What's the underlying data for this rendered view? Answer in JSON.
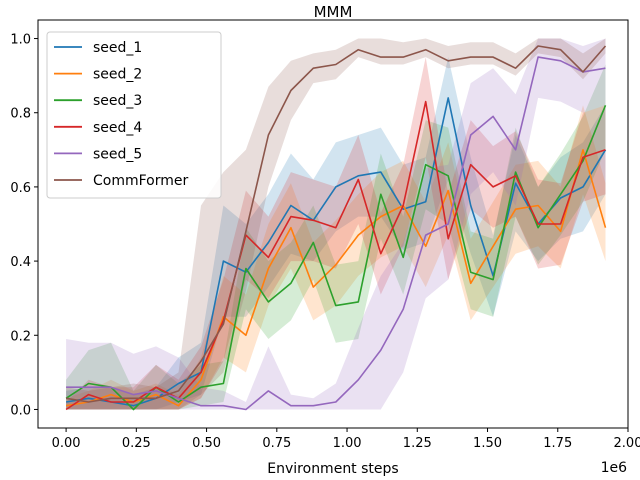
{
  "chart_data": {
    "type": "line",
    "title": "MMM",
    "xlabel": "Environment steps",
    "ylabel": "",
    "x_offset_label": "1e6",
    "xlim": [
      -0.1,
      2.0
    ],
    "ylim": [
      -0.05,
      1.05
    ],
    "x_ticks": [
      "0.00",
      "0.25",
      "0.50",
      "0.75",
      "1.00",
      "1.25",
      "1.50",
      "1.75",
      "2.00"
    ],
    "y_ticks": [
      "0.0",
      "0.2",
      "0.4",
      "0.6",
      "0.8",
      "1.0"
    ],
    "legend_position": "upper-left",
    "x": [
      0.0,
      0.08,
      0.16,
      0.24,
      0.32,
      0.4,
      0.48,
      0.56,
      0.64,
      0.72,
      0.8,
      0.88,
      0.96,
      1.04,
      1.12,
      1.2,
      1.28,
      1.36,
      1.44,
      1.52,
      1.6,
      1.68,
      1.76,
      1.84,
      1.92
    ],
    "series": [
      {
        "name": "seed_1",
        "color": "#1f77b4",
        "values": [
          0.02,
          0.03,
          0.02,
          0.01,
          0.03,
          0.07,
          0.1,
          0.4,
          0.37,
          0.45,
          0.55,
          0.51,
          0.6,
          0.63,
          0.64,
          0.54,
          0.56,
          0.84,
          0.55,
          0.36,
          0.61,
          0.5,
          0.57,
          0.6,
          0.7
        ],
        "lower": [
          0.0,
          0.0,
          0.0,
          0.0,
          0.0,
          0.02,
          0.04,
          0.25,
          0.25,
          0.33,
          0.42,
          0.4,
          0.48,
          0.52,
          0.52,
          0.43,
          0.45,
          0.62,
          0.42,
          0.25,
          0.48,
          0.4,
          0.46,
          0.48,
          0.58
        ],
        "upper": [
          0.05,
          0.06,
          0.06,
          0.04,
          0.06,
          0.14,
          0.18,
          0.55,
          0.5,
          0.58,
          0.69,
          0.62,
          0.72,
          0.74,
          0.76,
          0.66,
          0.68,
          0.95,
          0.68,
          0.47,
          0.74,
          0.6,
          0.68,
          0.72,
          0.82
        ]
      },
      {
        "name": "seed_2",
        "color": "#ff7f0e",
        "values": [
          0.01,
          0.02,
          0.04,
          0.02,
          0.04,
          0.01,
          0.08,
          0.25,
          0.2,
          0.38,
          0.49,
          0.33,
          0.39,
          0.47,
          0.52,
          0.55,
          0.44,
          0.59,
          0.34,
          0.44,
          0.54,
          0.55,
          0.48,
          0.7,
          0.49
        ],
        "lower": [
          0.0,
          0.0,
          0.0,
          0.0,
          0.0,
          0.0,
          0.03,
          0.14,
          0.1,
          0.28,
          0.38,
          0.24,
          0.28,
          0.36,
          0.41,
          0.44,
          0.33,
          0.47,
          0.24,
          0.33,
          0.42,
          0.44,
          0.38,
          0.58,
          0.4
        ],
        "upper": [
          0.03,
          0.05,
          0.08,
          0.05,
          0.07,
          0.04,
          0.14,
          0.36,
          0.31,
          0.5,
          0.61,
          0.45,
          0.51,
          0.58,
          0.64,
          0.67,
          0.56,
          0.72,
          0.46,
          0.56,
          0.66,
          0.67,
          0.6,
          0.82,
          0.61
        ]
      },
      {
        "name": "seed_3",
        "color": "#2ca02c",
        "values": [
          0.03,
          0.07,
          0.06,
          0.0,
          0.06,
          0.02,
          0.06,
          0.07,
          0.38,
          0.29,
          0.34,
          0.45,
          0.28,
          0.29,
          0.58,
          0.41,
          0.66,
          0.63,
          0.37,
          0.35,
          0.64,
          0.49,
          0.58,
          0.67,
          0.82
        ],
        "lower": [
          0.0,
          0.0,
          0.0,
          0.0,
          0.0,
          0.0,
          0.01,
          0.02,
          0.27,
          0.19,
          0.24,
          0.35,
          0.18,
          0.19,
          0.46,
          0.31,
          0.54,
          0.5,
          0.27,
          0.25,
          0.52,
          0.39,
          0.47,
          0.56,
          0.7
        ],
        "upper": [
          0.08,
          0.16,
          0.18,
          0.05,
          0.12,
          0.07,
          0.12,
          0.13,
          0.49,
          0.4,
          0.45,
          0.55,
          0.39,
          0.4,
          0.69,
          0.52,
          0.78,
          0.76,
          0.48,
          0.46,
          0.76,
          0.6,
          0.69,
          0.79,
          0.93
        ]
      },
      {
        "name": "seed_4",
        "color": "#d62728",
        "values": [
          0.0,
          0.04,
          0.02,
          0.02,
          0.06,
          0.03,
          0.1,
          0.24,
          0.47,
          0.41,
          0.52,
          0.51,
          0.49,
          0.62,
          0.42,
          0.55,
          0.83,
          0.46,
          0.66,
          0.6,
          0.63,
          0.5,
          0.5,
          0.68,
          0.7
        ],
        "lower": [
          0.0,
          0.0,
          0.0,
          0.0,
          0.0,
          0.0,
          0.03,
          0.13,
          0.35,
          0.3,
          0.4,
          0.4,
          0.38,
          0.5,
          0.31,
          0.44,
          0.68,
          0.35,
          0.54,
          0.49,
          0.52,
          0.38,
          0.39,
          0.56,
          0.58
        ],
        "upper": [
          0.02,
          0.08,
          0.06,
          0.06,
          0.12,
          0.08,
          0.17,
          0.35,
          0.59,
          0.52,
          0.64,
          0.62,
          0.6,
          0.74,
          0.53,
          0.66,
          0.95,
          0.58,
          0.78,
          0.71,
          0.75,
          0.62,
          0.61,
          0.8,
          0.82
        ]
      },
      {
        "name": "seed_5",
        "color": "#9467bd",
        "values": [
          0.06,
          0.06,
          0.06,
          0.04,
          0.05,
          0.03,
          0.01,
          0.01,
          0.0,
          0.05,
          0.01,
          0.01,
          0.02,
          0.08,
          0.16,
          0.27,
          0.47,
          0.5,
          0.74,
          0.79,
          0.7,
          0.95,
          0.94,
          0.91,
          0.92
        ],
        "lower": [
          0.0,
          0.0,
          0.0,
          0.0,
          0.0,
          0.0,
          0.0,
          0.0,
          0.0,
          0.0,
          0.0,
          0.0,
          0.0,
          0.0,
          0.0,
          0.1,
          0.3,
          0.35,
          0.58,
          0.64,
          0.55,
          0.84,
          0.83,
          0.8,
          0.82
        ],
        "upper": [
          0.19,
          0.18,
          0.18,
          0.15,
          0.17,
          0.14,
          0.06,
          0.05,
          0.02,
          0.17,
          0.04,
          0.03,
          0.07,
          0.22,
          0.36,
          0.45,
          0.65,
          0.66,
          0.88,
          0.92,
          0.85,
          1.0,
          1.0,
          0.98,
          1.0
        ]
      },
      {
        "name": "CommFormer",
        "color": "#8c564b",
        "values": [
          0.03,
          0.02,
          0.03,
          0.03,
          0.03,
          0.05,
          0.13,
          0.23,
          0.48,
          0.74,
          0.86,
          0.92,
          0.93,
          0.97,
          0.95,
          0.95,
          0.97,
          0.94,
          0.95,
          0.95,
          0.92,
          0.98,
          0.97,
          0.91,
          0.98
        ],
        "lower": [
          0.0,
          0.0,
          0.0,
          0.0,
          0.0,
          0.0,
          0.04,
          0.1,
          0.32,
          0.6,
          0.78,
          0.88,
          0.89,
          0.95,
          0.93,
          0.93,
          0.95,
          0.92,
          0.93,
          0.93,
          0.9,
          0.96,
          0.95,
          0.89,
          0.96
        ],
        "upper": [
          0.06,
          0.05,
          0.06,
          0.07,
          0.06,
          0.1,
          0.55,
          0.64,
          0.7,
          0.87,
          0.94,
          0.96,
          0.97,
          1.0,
          1.0,
          0.99,
          1.0,
          0.98,
          0.99,
          0.99,
          0.96,
          1.0,
          1.0,
          0.96,
          1.0
        ]
      }
    ]
  }
}
